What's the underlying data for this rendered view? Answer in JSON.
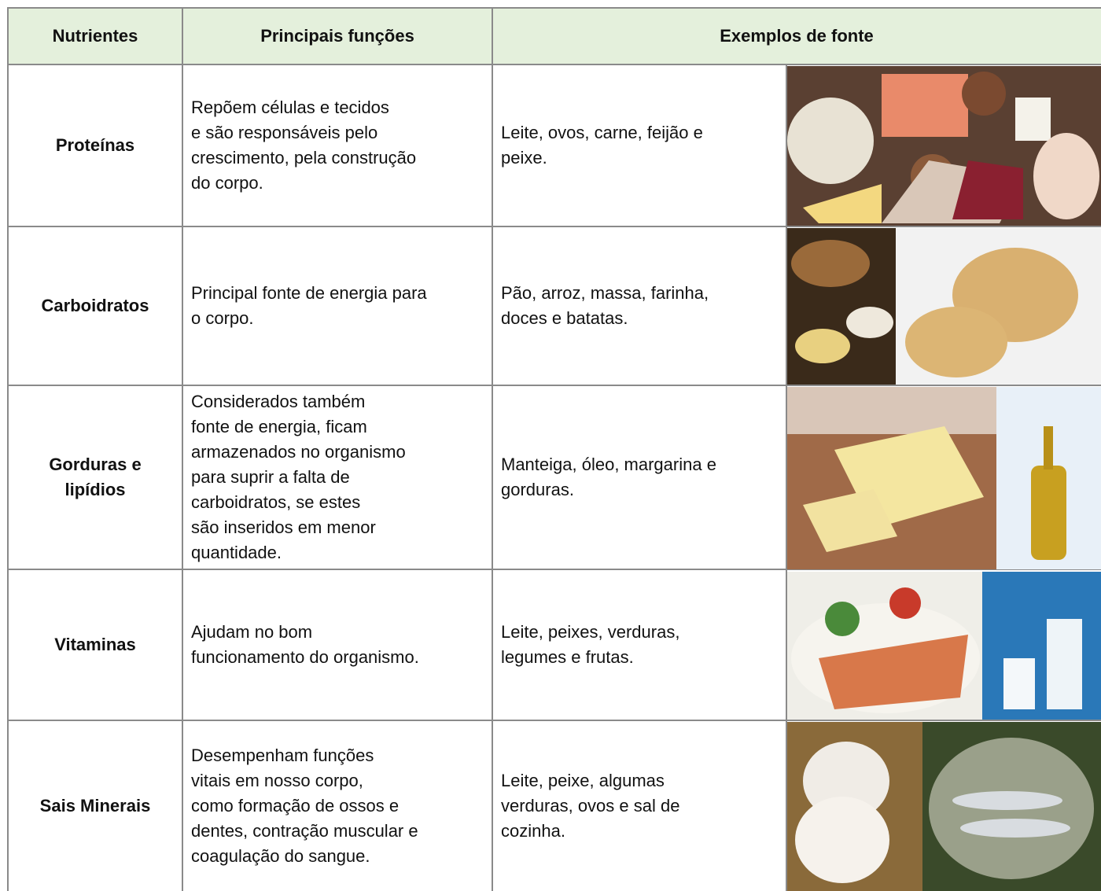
{
  "table": {
    "header": [
      "Nutrientes",
      "Principais funções",
      "Exemplos de fonte"
    ],
    "rows": [
      {
        "nutrient": [
          "Proteínas"
        ],
        "function": [
          "Repõem células e tecidos",
          "e são responsáveis pelo",
          "crescimento, pela construção",
          "do corpo."
        ],
        "sources": [
          "Leite, ovos, carne, feijão e",
          "peixe."
        ]
      },
      {
        "nutrient": [
          "Carboidratos"
        ],
        "function": [
          "Principal fonte de energia para",
          "o corpo."
        ],
        "sources": [
          "Pão, arroz, massa, farinha,",
          "doces e batatas."
        ]
      },
      {
        "nutrient": [
          "Gorduras e",
          "lipídios"
        ],
        "function": [
          "Considerados também",
          "fonte de energia, ficam",
          "armazenados no organismo",
          "para suprir a falta de",
          "carboidratos, se estes",
          "são inseridos em menor",
          "quantidade."
        ],
        "sources": [
          "Manteiga, óleo, margarina e",
          "gorduras."
        ]
      },
      {
        "nutrient": [
          "Vitaminas"
        ],
        "function": [
          "Ajudam no bom",
          "funcionamento do organismo."
        ],
        "sources": [
          "Leite, peixes, verduras,",
          "legumes e frutas."
        ]
      },
      {
        "nutrient": [
          "Sais Minerais"
        ],
        "function": [
          "Desempenham funções",
          "vitais em nosso corpo,",
          "como formação de ossos e",
          "dentes, contração muscular e",
          "coagulação do sangue."
        ],
        "sources": [
          "Leite, peixe, algumas",
          "verduras, ovos e sal de",
          "cozinha."
        ]
      }
    ]
  }
}
